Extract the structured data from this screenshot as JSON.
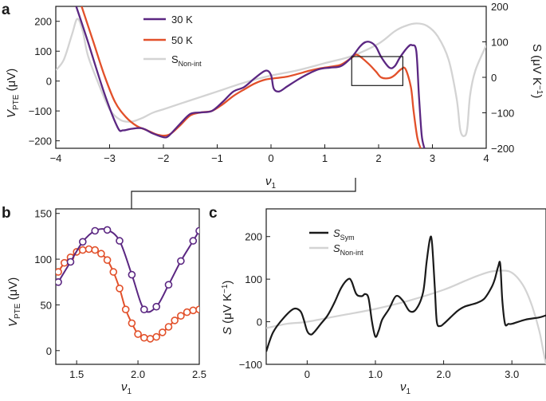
{
  "colors": {
    "purple": "#5b2782",
    "orange": "#e2502a",
    "gray": "#d3d3d3",
    "black": "#1a1a1a",
    "axis": "#1a1a1a"
  },
  "panel_a": {
    "letter": "a",
    "xlabel_main": "ν",
    "xlabel_sub": "1",
    "ylabel_main": "V",
    "ylabel_sub": "PTE",
    "ylabel_unit": " (μV)",
    "y2label": "S (μV K",
    "y2label_exp": "−1",
    "y2label_end": ")"
  },
  "panel_b": {
    "letter": "b",
    "xlabel_main": "ν",
    "xlabel_sub": "1",
    "ylabel_main": "V",
    "ylabel_sub": "PTE",
    "ylabel_unit": " (μV)"
  },
  "panel_c": {
    "letter": "c",
    "xlabel_main": "ν",
    "xlabel_sub": "1",
    "ylabel_main": "S",
    "ylabel_unit": " (μV K",
    "ylabel_exp": "−1",
    "ylabel_end": ")"
  },
  "chart_data": [
    {
      "id": "a",
      "type": "line",
      "xlim": [
        -4,
        4
      ],
      "ylim": [
        -225,
        250
      ],
      "y2lim": [
        -200,
        200
      ],
      "xticks": [
        "−4",
        "−3",
        "−2",
        "−1",
        "0",
        "1",
        "2",
        "3",
        "4"
      ],
      "yticks": [
        "200",
        "100",
        "0",
        "−100",
        "−200"
      ],
      "y2ticks": [
        "200",
        "100",
        "0",
        "−100",
        "−200"
      ],
      "legend": [
        {
          "name": "30 K",
          "sub": ""
        },
        {
          "name": "50 K",
          "sub": ""
        },
        {
          "name": "S",
          "sub": "Non-int"
        }
      ],
      "series": [
        {
          "name": "30 K",
          "axis": "left",
          "x": [
            -3.62,
            -3.4,
            -3.1,
            -2.85,
            -2.75,
            -2.6,
            -2.4,
            -2.2,
            -2.0,
            -1.9,
            -1.7,
            -1.5,
            -1.3,
            -1.1,
            -0.9,
            -0.7,
            -0.5,
            -0.3,
            -0.1,
            0.0,
            0.05,
            0.15,
            0.3,
            0.5,
            0.7,
            0.9,
            1.1,
            1.3,
            1.5,
            1.65,
            1.75,
            1.85,
            1.95,
            2.05,
            2.2,
            2.3,
            2.4,
            2.55,
            2.62,
            2.7,
            2.75,
            2.8,
            2.85
          ],
          "y": [
            250,
            130,
            -40,
            -155,
            -165,
            -160,
            -158,
            -175,
            -188,
            -183,
            -145,
            -110,
            -105,
            -100,
            -70,
            -35,
            -20,
            10,
            35,
            20,
            -25,
            -35,
            -18,
            5,
            25,
            40,
            45,
            50,
            80,
            115,
            130,
            130,
            115,
            80,
            45,
            50,
            80,
            115,
            120,
            100,
            -50,
            -180,
            -225
          ]
        },
        {
          "name": "50 K",
          "axis": "left",
          "x": [
            -3.52,
            -3.3,
            -3.1,
            -2.9,
            -2.7,
            -2.5,
            -2.3,
            -2.1,
            -1.9,
            -1.7,
            -1.5,
            -1.3,
            -1.1,
            -0.9,
            -0.7,
            -0.5,
            -0.3,
            -0.1,
            0.1,
            0.3,
            0.5,
            0.7,
            0.9,
            1.1,
            1.3,
            1.5,
            1.6,
            1.8,
            1.95,
            2.05,
            2.2,
            2.3,
            2.42,
            2.5,
            2.6,
            2.65,
            2.72,
            2.78
          ],
          "y": [
            250,
            130,
            20,
            -70,
            -120,
            -150,
            -165,
            -180,
            -180,
            -150,
            -115,
            -105,
            -100,
            -78,
            -50,
            -28,
            -8,
            5,
            10,
            15,
            24,
            34,
            42,
            48,
            55,
            78,
            88,
            60,
            32,
            12,
            10,
            20,
            40,
            40,
            -20,
            -100,
            -190,
            -225
          ]
        },
        {
          "name": "S_Non-int",
          "axis": "right",
          "x": [
            -4,
            -3.85,
            -3.7,
            -3.6,
            -3.5,
            -3.4,
            -3.2,
            -3.0,
            -2.8,
            -2.6,
            -2.4,
            -2.2,
            -2.0,
            -1.5,
            -1.0,
            -0.5,
            0.0,
            0.5,
            1.0,
            1.5,
            2.0,
            2.3,
            2.5,
            2.7,
            2.9,
            3.1,
            3.3,
            3.45,
            3.52,
            3.6,
            3.65,
            3.7,
            3.8,
            4.0
          ],
          "y": [
            20,
            50,
            120,
            165,
            130,
            60,
            -20,
            -90,
            -120,
            -125,
            -115,
            -100,
            -90,
            -65,
            -40,
            -15,
            5,
            20,
            40,
            60,
            95,
            130,
            145,
            152,
            145,
            115,
            50,
            -60,
            -150,
            -165,
            -140,
            -50,
            20,
            90
          ]
        }
      ],
      "inset_box": {
        "x": [
          1.5,
          2.45
        ],
        "y": [
          -15,
          82
        ]
      }
    },
    {
      "id": "b",
      "type": "line",
      "xlim": [
        1.33,
        2.5
      ],
      "ylim": [
        -15,
        155
      ],
      "xticks": [
        "1.5",
        "2.0",
        "2.5"
      ],
      "yticks": [
        "150",
        "100",
        "50",
        "0"
      ],
      "series": [
        {
          "name": "30 K",
          "markers": true,
          "x": [
            1.35,
            1.45,
            1.55,
            1.65,
            1.75,
            1.85,
            1.95,
            2.05,
            2.15,
            2.25,
            2.35,
            2.45,
            2.5
          ],
          "y": [
            75,
            97,
            119,
            131,
            132,
            120,
            83,
            45,
            48,
            72,
            98,
            120,
            131
          ]
        },
        {
          "name": "50 K",
          "markers": true,
          "x": [
            1.35,
            1.4,
            1.45,
            1.5,
            1.55,
            1.6,
            1.65,
            1.7,
            1.75,
            1.8,
            1.85,
            1.9,
            1.95,
            2.0,
            2.05,
            2.1,
            2.15,
            2.2,
            2.25,
            2.3,
            2.35,
            2.4,
            2.45,
            2.5
          ],
          "y": [
            86,
            96,
            102,
            108,
            110,
            111,
            110,
            106,
            99,
            86,
            68,
            45,
            30,
            18,
            14,
            13,
            15,
            20,
            26,
            33,
            38,
            42,
            44,
            45
          ]
        }
      ]
    },
    {
      "id": "c",
      "type": "line",
      "xlim": [
        -0.6,
        3.5
      ],
      "ylim": [
        -100,
        265
      ],
      "xticks": [
        "0",
        "1.0",
        "2.0",
        "3.0"
      ],
      "yticks": [
        "200",
        "100",
        "0",
        "−100"
      ],
      "legend": [
        {
          "name": "S",
          "sub": "Sym"
        },
        {
          "name": "S",
          "sub": "Non-int"
        }
      ],
      "series": [
        {
          "name": "S_Sym",
          "x": [
            -0.6,
            -0.5,
            -0.35,
            -0.2,
            -0.1,
            -0.05,
            0.0,
            0.05,
            0.1,
            0.2,
            0.3,
            0.4,
            0.5,
            0.6,
            0.65,
            0.72,
            0.8,
            0.85,
            0.9,
            0.95,
            1.0,
            1.05,
            1.1,
            1.2,
            1.3,
            1.4,
            1.5,
            1.6,
            1.7,
            1.75,
            1.8,
            1.83,
            1.87,
            1.9,
            1.95,
            2.0,
            2.1,
            2.2,
            2.3,
            2.4,
            2.5,
            2.6,
            2.7,
            2.75,
            2.8,
            2.83,
            2.86,
            2.9,
            2.95,
            3.0,
            3.2,
            3.4,
            3.5
          ],
          "y": [
            -70,
            -25,
            8,
            30,
            25,
            5,
            -22,
            -30,
            -25,
            -5,
            15,
            45,
            80,
            100,
            95,
            65,
            60,
            65,
            55,
            0,
            -35,
            -20,
            5,
            30,
            60,
            50,
            25,
            30,
            70,
            140,
            195,
            185,
            80,
            0,
            -10,
            -5,
            10,
            25,
            35,
            40,
            45,
            55,
            80,
            100,
            130,
            135,
            50,
            -5,
            -5,
            -5,
            5,
            10,
            15
          ]
        },
        {
          "name": "S_Non-int",
          "x": [
            -0.6,
            -0.3,
            0.0,
            0.5,
            1.0,
            1.5,
            2.0,
            2.3,
            2.5,
            2.7,
            2.9,
            3.0,
            3.1,
            3.2,
            3.3,
            3.4,
            3.45,
            3.5
          ],
          "y": [
            -15,
            -5,
            0,
            15,
            30,
            50,
            75,
            95,
            108,
            118,
            120,
            115,
            100,
            75,
            35,
            -20,
            -60,
            -100
          ]
        }
      ]
    }
  ]
}
